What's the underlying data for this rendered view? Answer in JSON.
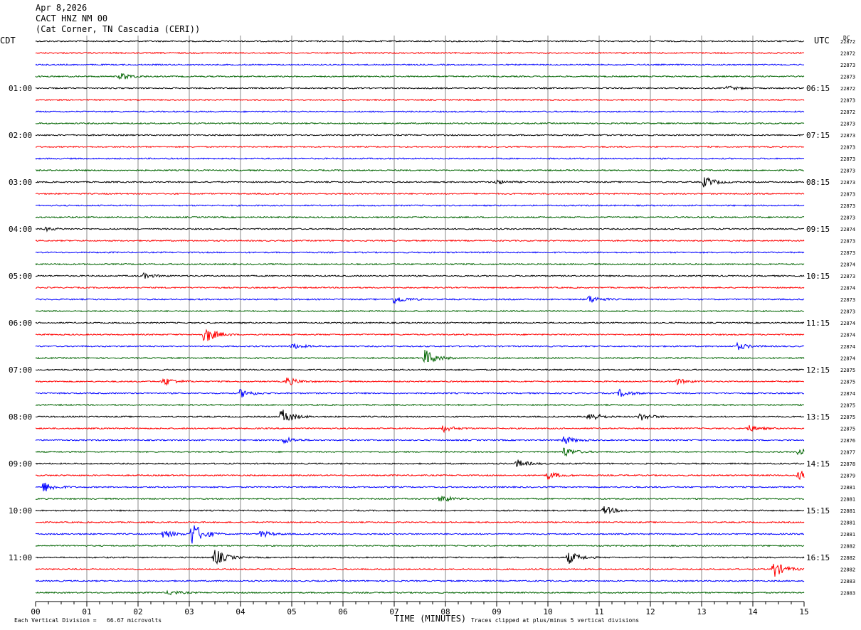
{
  "header": {
    "date": "Apr 8,2026",
    "station": "CACT HNZ NM 00",
    "location": "(Cat Corner, TN Cascadia (CERI))"
  },
  "left_zone_label": "CDT",
  "right_zone_label": "UTC",
  "dc_label": "DC",
  "footer": {
    "division_note": "Each Vertical Division =   66.67 microvolts",
    "xlabel": "TIME (MINUTES)",
    "clip_note": "Traces clipped at plus/minus 5 vertical divisions"
  },
  "colors": {
    "trace_cycle": [
      "#000000",
      "#ff0000",
      "#0000ff",
      "#006400"
    ],
    "grid": "#888888"
  },
  "chart_data": {
    "type": "line",
    "title": "CACT HNZ NM 00",
    "xlabel": "TIME (MINUTES)",
    "xlim": [
      0,
      15
    ],
    "x_ticks": [
      "00",
      "01",
      "02",
      "03",
      "04",
      "05",
      "06",
      "07",
      "08",
      "09",
      "10",
      "11",
      "12",
      "13",
      "14",
      "15"
    ],
    "left_hour_labels": [
      "01:00",
      "02:00",
      "03:00",
      "04:00",
      "05:00",
      "06:00",
      "07:00",
      "08:00",
      "09:00",
      "10:00",
      "11:00"
    ],
    "right_hour_labels": [
      "06:15",
      "07:15",
      "08:15",
      "09:15",
      "10:15",
      "11:15",
      "12:15",
      "13:15",
      "14:15",
      "15:15",
      "16:15"
    ],
    "dc_offsets": [
      "22872",
      "22872",
      "22873",
      "22873",
      "22872",
      "22873",
      "22872",
      "22873",
      "22873",
      "22873",
      "22873",
      "22873",
      "22873",
      "22873",
      "22873",
      "22873",
      "22874",
      "22873",
      "22873",
      "22874",
      "22873",
      "22874",
      "22873",
      "22873",
      "22874",
      "22874",
      "22874",
      "22874",
      "22875",
      "22875",
      "22874",
      "22875",
      "22875",
      "22875",
      "22876",
      "22877",
      "22878",
      "22879",
      "22881",
      "22881",
      "22881",
      "22881",
      "22881",
      "22882",
      "22882",
      "22882",
      "22883",
      "22883"
    ],
    "events": [
      {
        "trace": 3,
        "minute": 1.65,
        "amp": 0.9
      },
      {
        "trace": 4,
        "minute": 13.5,
        "amp": 0.5
      },
      {
        "trace": 12,
        "minute": 13.05,
        "amp": 1.3
      },
      {
        "trace": 12,
        "minute": 9.0,
        "amp": 0.5
      },
      {
        "trace": 16,
        "minute": 0.2,
        "amp": 0.4
      },
      {
        "trace": 20,
        "minute": 2.1,
        "amp": 0.6
      },
      {
        "trace": 22,
        "minute": 7.0,
        "amp": 1.0
      },
      {
        "trace": 22,
        "minute": 10.8,
        "amp": 0.9
      },
      {
        "trace": 25,
        "minute": 3.3,
        "amp": 2.2
      },
      {
        "trace": 26,
        "minute": 5.0,
        "amp": 0.7
      },
      {
        "trace": 26,
        "minute": 13.7,
        "amp": 0.8
      },
      {
        "trace": 27,
        "minute": 7.6,
        "amp": 2.0
      },
      {
        "trace": 29,
        "minute": 2.5,
        "amp": 1.0
      },
      {
        "trace": 29,
        "minute": 4.9,
        "amp": 1.0
      },
      {
        "trace": 29,
        "minute": 12.5,
        "amp": 0.7
      },
      {
        "trace": 30,
        "minute": 4.0,
        "amp": 1.0
      },
      {
        "trace": 30,
        "minute": 11.4,
        "amp": 0.9
      },
      {
        "trace": 32,
        "minute": 4.8,
        "amp": 2.0
      },
      {
        "trace": 32,
        "minute": 10.8,
        "amp": 1.2
      },
      {
        "trace": 32,
        "minute": 11.8,
        "amp": 0.9
      },
      {
        "trace": 33,
        "minute": 7.95,
        "amp": 0.8
      },
      {
        "trace": 33,
        "minute": 13.9,
        "amp": 0.8
      },
      {
        "trace": 34,
        "minute": 4.85,
        "amp": 0.8
      },
      {
        "trace": 34,
        "minute": 10.3,
        "amp": 1.0
      },
      {
        "trace": 35,
        "minute": 10.3,
        "amp": 1.2
      },
      {
        "trace": 35,
        "minute": 14.9,
        "amp": 1.0
      },
      {
        "trace": 36,
        "minute": 9.4,
        "amp": 0.9
      },
      {
        "trace": 37,
        "minute": 10.0,
        "amp": 0.9
      },
      {
        "trace": 37,
        "minute": 14.9,
        "amp": 1.2
      },
      {
        "trace": 38,
        "minute": 0.15,
        "amp": 1.3
      },
      {
        "trace": 39,
        "minute": 7.9,
        "amp": 0.9
      },
      {
        "trace": 40,
        "minute": 11.1,
        "amp": 1.0
      },
      {
        "trace": 42,
        "minute": 3.05,
        "amp": 3.0
      },
      {
        "trace": 42,
        "minute": 2.5,
        "amp": 1.0
      },
      {
        "trace": 42,
        "minute": 4.4,
        "amp": 0.8
      },
      {
        "trace": 44,
        "minute": 3.5,
        "amp": 2.0
      },
      {
        "trace": 44,
        "minute": 10.4,
        "amp": 1.5
      },
      {
        "trace": 45,
        "minute": 14.4,
        "amp": 2.0
      },
      {
        "trace": 47,
        "minute": 2.6,
        "amp": 0.6
      }
    ]
  }
}
